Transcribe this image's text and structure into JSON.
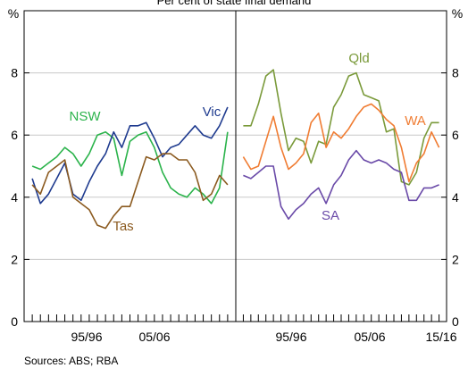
{
  "chart_data": [
    {
      "type": "line",
      "title": "Per cent of state final demand",
      "y_unit": "%",
      "ylim": [
        0,
        10
      ],
      "yticks": [
        0,
        2,
        4,
        6,
        8
      ],
      "xlim": [
        1988,
        2014
      ],
      "xtick_labels": [
        "95/96",
        "05/06"
      ],
      "grid": true,
      "series": [
        {
          "name": "NSW",
          "color": "#2bb34b",
          "x": [
            1989,
            1990,
            1991,
            1992,
            1993,
            1994,
            1995,
            1996,
            1997,
            1998,
            1999,
            2000,
            2001,
            2002,
            2003,
            2004,
            2005,
            2006,
            2007,
            2008,
            2009,
            2010,
            2011,
            2012,
            2013
          ],
          "values": [
            5.0,
            4.9,
            5.1,
            5.3,
            5.6,
            5.4,
            5.0,
            5.4,
            6.0,
            6.1,
            5.9,
            4.7,
            5.8,
            6.0,
            6.1,
            5.6,
            4.8,
            4.3,
            4.1,
            4.0,
            4.3,
            4.1,
            3.8,
            4.3,
            6.1
          ]
        },
        {
          "name": "Vic",
          "color": "#1f3b8f",
          "x": [
            1989,
            1990,
            1991,
            1992,
            1993,
            1994,
            1995,
            1996,
            1997,
            1998,
            1999,
            2000,
            2001,
            2002,
            2003,
            2004,
            2005,
            2006,
            2007,
            2008,
            2009,
            2010,
            2011,
            2012,
            2013
          ],
          "values": [
            4.6,
            3.8,
            4.1,
            4.6,
            5.1,
            4.1,
            3.9,
            4.5,
            5.0,
            5.4,
            6.1,
            5.6,
            6.3,
            6.3,
            6.4,
            5.9,
            5.3,
            5.6,
            5.7,
            6.0,
            6.3,
            6.0,
            5.9,
            6.3,
            6.9
          ]
        },
        {
          "name": "Tas",
          "color": "#8b5a1f",
          "x": [
            1989,
            1990,
            1991,
            1992,
            1993,
            1994,
            1995,
            1996,
            1997,
            1998,
            1999,
            2000,
            2001,
            2002,
            2003,
            2004,
            2005,
            2006,
            2007,
            2008,
            2009,
            2010,
            2011,
            2012,
            2013
          ],
          "values": [
            4.4,
            4.1,
            4.8,
            5.0,
            5.2,
            4.0,
            3.8,
            3.6,
            3.1,
            3.0,
            3.4,
            3.7,
            3.7,
            4.5,
            5.3,
            5.2,
            5.4,
            5.4,
            5.2,
            5.2,
            4.8,
            3.9,
            4.1,
            4.7,
            4.4
          ]
        }
      ]
    },
    {
      "type": "line",
      "y_unit": "%",
      "ylim": [
        0,
        10
      ],
      "yticks": [
        0,
        2,
        4,
        6,
        8
      ],
      "xlim": [
        1988,
        2016
      ],
      "xtick_labels": [
        "95/96",
        "05/06",
        "15/16"
      ],
      "grid": true,
      "series": [
        {
          "name": "Qld",
          "color": "#7a9a3a",
          "x": [
            1989,
            1990,
            1991,
            1992,
            1993,
            1994,
            1995,
            1996,
            1997,
            1998,
            1999,
            2000,
            2001,
            2002,
            2003,
            2004,
            2005,
            2006,
            2007,
            2008,
            2009,
            2010,
            2011,
            2012,
            2013,
            2014,
            2015
          ],
          "values": [
            6.3,
            6.3,
            7.0,
            7.9,
            8.1,
            6.7,
            5.5,
            5.9,
            5.8,
            5.1,
            5.8,
            5.7,
            6.9,
            7.3,
            7.9,
            8.0,
            7.3,
            7.2,
            7.1,
            6.1,
            6.2,
            4.5,
            4.4,
            4.8,
            5.9,
            6.4,
            6.4
          ]
        },
        {
          "name": "WA",
          "color": "#f07c32",
          "x": [
            1989,
            1990,
            1991,
            1992,
            1993,
            1994,
            1995,
            1996,
            1997,
            1998,
            1999,
            2000,
            2001,
            2002,
            2003,
            2004,
            2005,
            2006,
            2007,
            2008,
            2009,
            2010,
            2011,
            2012,
            2013,
            2014,
            2015
          ],
          "values": [
            5.3,
            4.9,
            5.0,
            5.8,
            6.6,
            5.6,
            4.9,
            5.1,
            5.4,
            6.4,
            6.7,
            5.6,
            6.1,
            5.9,
            6.2,
            6.6,
            6.9,
            7.0,
            6.8,
            6.5,
            6.3,
            5.6,
            4.5,
            5.1,
            5.4,
            6.1,
            5.6
          ]
        },
        {
          "name": "SA",
          "color": "#6a4aa8",
          "x": [
            1989,
            1990,
            1991,
            1992,
            1993,
            1994,
            1995,
            1996,
            1997,
            1998,
            1999,
            2000,
            2001,
            2002,
            2003,
            2004,
            2005,
            2006,
            2007,
            2008,
            2009,
            2010,
            2011,
            2012,
            2013,
            2014,
            2015
          ],
          "values": [
            4.7,
            4.6,
            4.8,
            5.0,
            5.0,
            3.7,
            3.3,
            3.6,
            3.8,
            4.1,
            4.3,
            3.8,
            4.4,
            4.7,
            5.2,
            5.5,
            5.2,
            5.1,
            5.2,
            5.1,
            4.9,
            4.8,
            3.9,
            3.9,
            4.3,
            4.3,
            4.4
          ]
        }
      ]
    }
  ],
  "sources": "Sources: ABS; RBA"
}
